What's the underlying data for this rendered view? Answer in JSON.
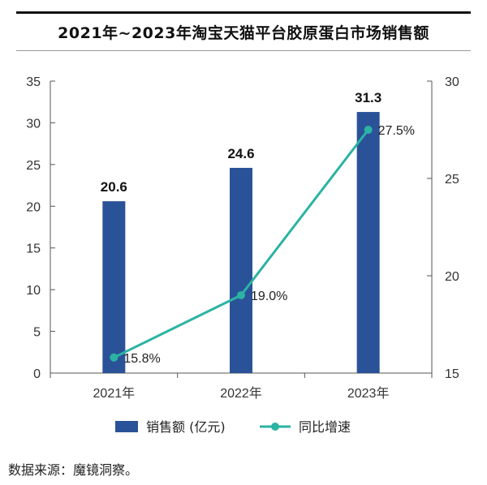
{
  "page": {
    "source_note": "数据来源：魔镜洞察。"
  },
  "chart_data": {
    "type": "bar",
    "title": "2021年~2023年淘宝天猫平台胶原蛋白市场销售额",
    "categories": [
      "2021年",
      "2022年",
      "2023年"
    ],
    "series": [
      {
        "name": "销售额 (亿元)",
        "type": "bar",
        "axis": "left",
        "values": [
          20.6,
          24.6,
          31.3
        ],
        "value_labels": [
          "20.6",
          "24.6",
          "31.3"
        ],
        "color": "#2a5298"
      },
      {
        "name": "同比增速",
        "type": "line",
        "axis": "right",
        "values": [
          15.8,
          19.0,
          27.5
        ],
        "value_labels": [
          "15.8%",
          "19.0%",
          "27.5%"
        ],
        "color": "#2bb3a3"
      }
    ],
    "y_left": {
      "ylim": [
        0,
        35
      ],
      "ticks": [
        "0",
        "5",
        "10",
        "15",
        "20",
        "25",
        "30",
        "35"
      ]
    },
    "y_right": {
      "ylim": [
        15,
        30
      ],
      "ticks": [
        "15",
        "20",
        "25",
        "30"
      ]
    },
    "legend_position": "bottom-center",
    "grid": false
  }
}
